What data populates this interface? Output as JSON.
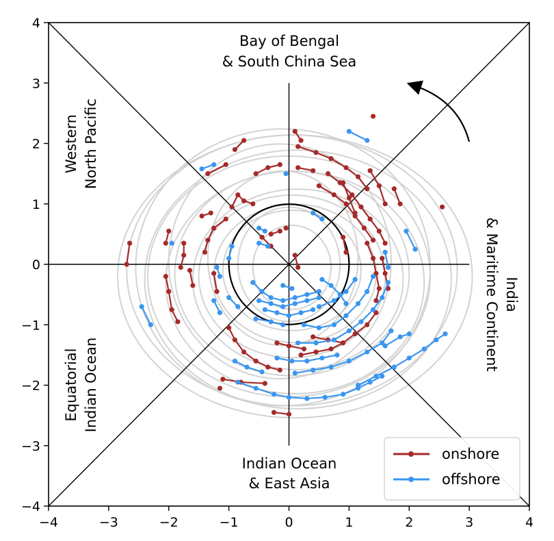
{
  "chart_data": {
    "type": "line",
    "xlim": [
      -4,
      4
    ],
    "ylim": [
      -4,
      4
    ],
    "x_ticks": [
      "−4",
      "−3",
      "−2",
      "−1",
      "0",
      "1",
      "2",
      "3",
      "4"
    ],
    "y_ticks": [
      "4",
      "3",
      "2",
      "1",
      "0",
      "−1",
      "−2",
      "−3",
      "−4"
    ],
    "grid": false,
    "legend_position": "lower-right",
    "reference_circle_radius": 1,
    "regions": [
      {
        "label_lines": [
          "Bay of Bengal",
          "& South China Sea"
        ],
        "side": "top"
      },
      {
        "label_lines": [
          "India",
          "& Maritime Continent"
        ],
        "side": "right"
      },
      {
        "label_lines": [
          "Indian Ocean",
          "& East Asia"
        ],
        "side": "bottom"
      },
      {
        "label_lines": [
          "Equatorial",
          "Indian Ocean"
        ],
        "side": "left"
      },
      {
        "label_lines": [
          "Western",
          "North Pacific"
        ],
        "side": "left-upper"
      }
    ],
    "colors": {
      "onshore": "#a52a2a",
      "offshore": "#3a96f0",
      "background_trajectories": "#d3d3d3",
      "axes": "#000000"
    },
    "series": [
      {
        "name": "onshore",
        "segments": [
          [
            [
              -0.9,
              1.9
            ],
            [
              -0.75,
              2.05
            ]
          ],
          [
            [
              -1.35,
              1.5
            ],
            [
              -1.05,
              1.65
            ]
          ],
          [
            [
              -0.55,
              1.5
            ],
            [
              -0.35,
              1.6
            ],
            [
              -0.15,
              1.65
            ]
          ],
          [
            [
              0.1,
              2.2
            ],
            [
              0.2,
              2.05
            ]
          ],
          [
            [
              0.15,
              1.6
            ],
            [
              0.4,
              1.55
            ]
          ],
          [
            [
              0.15,
              1.95
            ],
            [
              0.45,
              1.85
            ],
            [
              0.7,
              1.75
            ],
            [
              0.95,
              1.6
            ],
            [
              1.15,
              1.45
            ],
            [
              1.3,
              1.25
            ]
          ],
          [
            [
              0.5,
              1.3
            ],
            [
              0.75,
              1.15
            ],
            [
              0.95,
              1.0
            ],
            [
              1.1,
              0.8
            ],
            [
              1.25,
              0.6
            ],
            [
              1.4,
              0.4
            ]
          ],
          [
            [
              0.65,
              1.5
            ],
            [
              0.85,
              1.35
            ],
            [
              1.05,
              1.15
            ],
            [
              1.2,
              0.95
            ],
            [
              1.35,
              0.75
            ],
            [
              1.5,
              0.55
            ],
            [
              1.6,
              0.35
            ]
          ],
          [
            [
              1.35,
              1.55
            ],
            [
              1.5,
              1.3
            ],
            [
              1.6,
              1.0
            ]
          ],
          [
            [
              1.75,
              1.25
            ],
            [
              1.85,
              1.0
            ]
          ],
          [
            [
              1.4,
              2.45
            ]
          ],
          [
            [
              2.55,
              0.95
            ]
          ],
          [
            [
              0.9,
              1.35
            ],
            [
              1.0,
              1.1
            ],
            [
              1.1,
              0.85
            ]
          ],
          [
            [
              -0.6,
              1.0
            ],
            [
              -0.75,
              1.05
            ],
            [
              -0.85,
              1.15
            ],
            [
              -0.95,
              0.95
            ]
          ],
          [
            [
              -1.3,
              0.85
            ],
            [
              -1.45,
              0.8
            ]
          ],
          [
            [
              -1.05,
              0.75
            ],
            [
              -1.25,
              0.6
            ],
            [
              -1.35,
              0.4
            ],
            [
              -1.4,
              0.2
            ]
          ],
          [
            [
              -1.75,
              0.35
            ],
            [
              -1.75,
              0.15
            ],
            [
              -1.8,
              -0.05
            ]
          ],
          [
            [
              -2.0,
              0.55
            ],
            [
              -2.05,
              0.35
            ]
          ],
          [
            [
              -2.65,
              0.35
            ],
            [
              -2.7,
              0.0
            ]
          ],
          [
            [
              -2.05,
              -0.2
            ],
            [
              -2.0,
              -0.45
            ],
            [
              -1.95,
              -0.75
            ],
            [
              -1.85,
              -0.95
            ]
          ],
          [
            [
              -1.65,
              -0.1
            ],
            [
              -1.6,
              -0.35
            ]
          ],
          [
            [
              -1.0,
              -1.05
            ],
            [
              -0.9,
              -1.25
            ],
            [
              -0.75,
              -1.45
            ],
            [
              -0.55,
              -1.6
            ],
            [
              -0.35,
              -1.7
            ],
            [
              -0.15,
              -1.75
            ]
          ],
          [
            [
              -0.2,
              -1.3
            ],
            [
              0.0,
              -1.35
            ],
            [
              0.25,
              -1.4
            ]
          ],
          [
            [
              0.4,
              -1.2
            ],
            [
              0.65,
              -1.25
            ],
            [
              0.9,
              -1.3
            ]
          ],
          [
            [
              0.2,
              -1.5
            ],
            [
              0.45,
              -1.45
            ],
            [
              0.7,
              -1.4
            ],
            [
              0.9,
              -1.3
            ],
            [
              1.1,
              -1.15
            ],
            [
              1.3,
              -1.0
            ],
            [
              1.45,
              -0.8
            ]
          ],
          [
            [
              1.3,
              0.35
            ],
            [
              1.4,
              0.1
            ],
            [
              1.45,
              -0.15
            ],
            [
              1.5,
              -0.4
            ],
            [
              1.45,
              -0.6
            ]
          ],
          [
            [
              1.55,
              0.1
            ],
            [
              1.6,
              -0.15
            ],
            [
              1.65,
              -0.4
            ]
          ],
          [
            [
              0.9,
              0.45
            ],
            [
              0.95,
              0.2
            ]
          ],
          [
            [
              -1.1,
              -1.9
            ],
            [
              -0.8,
              -1.95
            ],
            [
              -0.4,
              -1.97
            ]
          ],
          [
            [
              -1.15,
              -2.05
            ]
          ],
          [
            [
              -0.25,
              -2.45
            ],
            [
              0.0,
              -2.48
            ]
          ],
          [
            [
              -1.25,
              -0.15
            ],
            [
              -1.2,
              -0.45
            ]
          ],
          [
            [
              -0.3,
              0.5
            ],
            [
              -0.15,
              0.55
            ]
          ],
          [
            [
              -0.45,
              0.45
            ],
            [
              -0.3,
              0.3
            ]
          ],
          [
            [
              0.1,
              0.15
            ],
            [
              0.15,
              -0.05
            ]
          ],
          [
            [
              -0.05,
              0.6
            ]
          ]
        ]
      },
      {
        "name": "offshore",
        "segments": [
          [
            [
              1.0,
              2.2
            ],
            [
              1.3,
              2.05
            ]
          ],
          [
            [
              -1.45,
              1.58
            ],
            [
              -1.25,
              1.65
            ]
          ],
          [
            [
              -0.05,
              1.5
            ]
          ],
          [
            [
              0.4,
              0.85
            ],
            [
              0.55,
              0.75
            ]
          ],
          [
            [
              -0.35,
              0.3
            ],
            [
              -0.5,
              0.35
            ]
          ],
          [
            [
              -0.95,
              0.3
            ],
            [
              -1.0,
              0.1
            ]
          ],
          [
            [
              -1.95,
              0.35
            ]
          ],
          [
            [
              -2.45,
              -0.7
            ],
            [
              -2.3,
              -1.0
            ]
          ],
          [
            [
              -1.0,
              -0.55
            ],
            [
              -0.85,
              -0.7
            ]
          ],
          [
            [
              -0.9,
              -1.6
            ],
            [
              -0.7,
              -1.7
            ],
            [
              -0.45,
              -1.78
            ]
          ],
          [
            [
              -0.85,
              -1.95
            ],
            [
              -0.55,
              -2.05
            ],
            [
              -0.25,
              -2.15
            ],
            [
              0.0,
              -2.2
            ],
            [
              0.3,
              -2.22
            ],
            [
              0.6,
              -2.2
            ],
            [
              0.9,
              -2.15
            ],
            [
              1.15,
              -2.05
            ],
            [
              1.35,
              -1.95
            ],
            [
              1.55,
              -1.85
            ]
          ],
          [
            [
              -0.2,
              -1.55
            ],
            [
              0.05,
              -1.6
            ],
            [
              0.3,
              -1.6
            ],
            [
              0.55,
              -1.55
            ],
            [
              0.8,
              -1.5
            ]
          ],
          [
            [
              0.1,
              -1.8
            ],
            [
              0.4,
              -1.75
            ],
            [
              0.7,
              -1.7
            ],
            [
              1.0,
              -1.6
            ],
            [
              1.3,
              -1.45
            ],
            [
              1.55,
              -1.3
            ],
            [
              1.7,
              -1.1
            ]
          ],
          [
            [
              0.15,
              -1.3
            ],
            [
              0.45,
              -1.3
            ],
            [
              0.75,
              -1.25
            ],
            [
              1.0,
              -1.1
            ],
            [
              1.2,
              -0.95
            ],
            [
              1.4,
              -0.75
            ],
            [
              1.55,
              -0.55
            ],
            [
              1.65,
              -0.3
            ]
          ],
          [
            [
              0.25,
              -1.0
            ],
            [
              0.5,
              -1.05
            ],
            [
              0.75,
              -1.0
            ],
            [
              0.95,
              -0.85
            ],
            [
              1.15,
              -0.65
            ],
            [
              1.3,
              -0.45
            ],
            [
              1.4,
              -0.2
            ]
          ],
          [
            [
              0.5,
              -0.7
            ],
            [
              0.75,
              -0.6
            ],
            [
              0.95,
              -0.45
            ],
            [
              1.1,
              -0.25
            ]
          ],
          [
            [
              1.15,
              -2.0
            ],
            [
              1.45,
              -1.85
            ],
            [
              1.75,
              -1.7
            ],
            [
              2.0,
              -1.55
            ],
            [
              2.25,
              -1.4
            ],
            [
              2.45,
              -1.25
            ],
            [
              2.6,
              -1.15
            ]
          ],
          [
            [
              1.6,
              -1.35
            ],
            [
              1.85,
              -1.2
            ],
            [
              2.0,
              -1.15
            ]
          ],
          [
            [
              1.95,
              0.55
            ],
            [
              2.1,
              0.25
            ]
          ],
          [
            [
              1.6,
              0.2
            ],
            [
              1.65,
              -0.05
            ]
          ],
          [
            [
              -0.6,
              -0.3
            ],
            [
              -0.45,
              -0.45
            ],
            [
              -0.3,
              -0.55
            ],
            [
              -0.1,
              -0.6
            ],
            [
              0.1,
              -0.55
            ],
            [
              0.3,
              -0.5
            ],
            [
              0.5,
              -0.45
            ]
          ],
          [
            [
              -0.5,
              -0.6
            ],
            [
              -0.3,
              -0.65
            ],
            [
              -0.1,
              -0.7
            ],
            [
              0.1,
              -0.65
            ],
            [
              0.3,
              -0.6
            ],
            [
              0.5,
              -0.55
            ]
          ],
          [
            [
              -0.4,
              -0.75
            ],
            [
              -0.2,
              -0.8
            ],
            [
              0.0,
              -0.85
            ],
            [
              0.2,
              -0.8
            ],
            [
              0.4,
              -0.75
            ]
          ],
          [
            [
              -0.5,
              0.6
            ],
            [
              -0.4,
              0.55
            ]
          ],
          [
            [
              -0.1,
              -0.35
            ],
            [
              0.05,
              -0.4
            ]
          ],
          [
            [
              -0.55,
              -0.9
            ],
            [
              -0.3,
              -0.95
            ],
            [
              -0.1,
              -1.0
            ]
          ],
          [
            [
              0.55,
              -0.25
            ],
            [
              0.7,
              -0.35
            ],
            [
              0.85,
              -0.5
            ],
            [
              0.95,
              -0.65
            ]
          ],
          [
            [
              -1.2,
              -0.05
            ],
            [
              -1.15,
              -0.2
            ]
          ],
          [
            [
              -1.25,
              -0.6
            ],
            [
              -1.15,
              -0.8
            ]
          ]
        ]
      }
    ]
  },
  "legend": {
    "items": [
      {
        "label": "onshore",
        "color": "#a52a2a"
      },
      {
        "label": "offshore",
        "color": "#3a96f0"
      }
    ]
  }
}
